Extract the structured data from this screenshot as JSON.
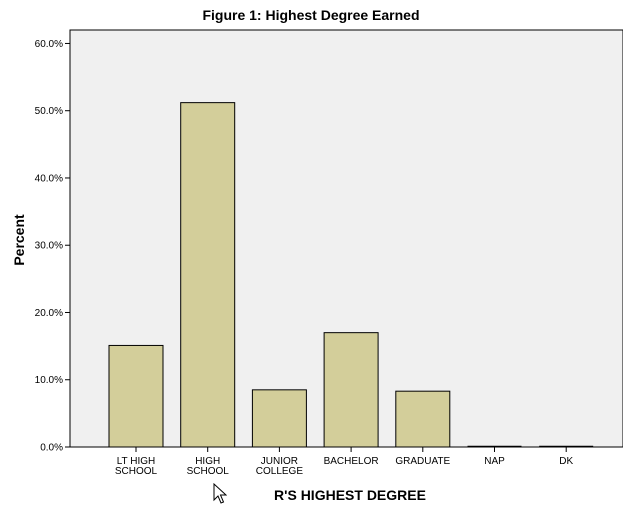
{
  "chart_data": {
    "type": "bar",
    "title": "Figure 1: Highest Degree Earned",
    "xlabel": "R'S HIGHEST DEGREE",
    "ylabel": "Percent",
    "categories": [
      [
        "LT HIGH",
        "SCHOOL"
      ],
      [
        "HIGH",
        "SCHOOL"
      ],
      [
        "JUNIOR",
        "COLLEGE"
      ],
      [
        "BACHELOR"
      ],
      [
        "GRADUATE"
      ],
      [
        "NAP"
      ],
      [
        "DK"
      ]
    ],
    "values": [
      15.1,
      51.2,
      8.5,
      17.0,
      8.3,
      0.0,
      0.0
    ],
    "ylim": [
      0,
      62
    ],
    "yticks": [
      0,
      10,
      20,
      30,
      40,
      50,
      60
    ],
    "ytick_labels": [
      "0.0%",
      "10.0%",
      "20.0%",
      "30.0%",
      "40.0%",
      "50.0%",
      "60.0%"
    ],
    "grid": false,
    "colors": {
      "plot_background": "#f0f0f0",
      "bar_fill": "#d3ce9a",
      "bar_stroke": "#000000"
    }
  },
  "cursor_icon": "mouse-pointer-icon"
}
